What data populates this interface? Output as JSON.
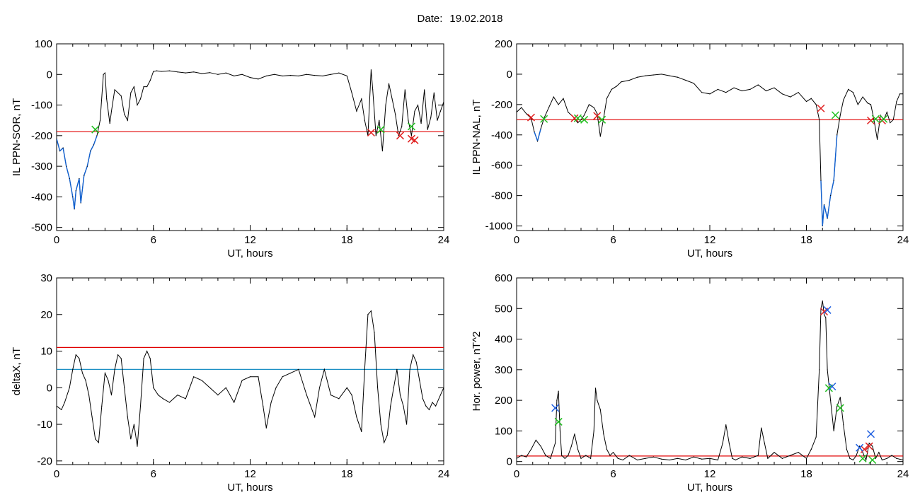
{
  "header": {
    "date_label": "Date:",
    "date_value": "19.02.2018"
  },
  "colors": {
    "trace": "#000000",
    "threshold": "#e00000",
    "threshold2": "#1b8fc4",
    "below_threshold": "#1060d0",
    "start_marker": "#e02020",
    "end_marker": "#20c020",
    "peak_marker": "#2060e0"
  },
  "chart_data": [
    {
      "type": "line",
      "xlabel": "UT, hours",
      "ylabel": "IL PPN-SOR, nT",
      "xlim": [
        0,
        24
      ],
      "ylim": [
        -510,
        100
      ],
      "xticks": [
        0,
        6,
        12,
        18,
        24
      ],
      "yticks": [
        100,
        0,
        -100,
        -200,
        -300,
        -400,
        -500
      ],
      "threshold": -187,
      "series": [
        {
          "x": [
            0,
            0.2,
            0.4,
            0.6,
            0.8,
            1.0,
            1.1,
            1.2,
            1.4,
            1.5,
            1.7,
            1.9,
            2.1,
            2.3,
            2.5,
            2.7,
            2.9,
            3.0,
            3.1,
            3.3,
            3.4,
            3.6,
            3.8,
            4.0,
            4.2,
            4.4,
            4.6,
            4.8,
            5.0,
            5.2,
            5.4,
            5.6,
            5.8,
            6.0,
            6.2,
            6.5,
            7,
            7.5,
            8,
            8.5,
            9,
            9.5,
            10,
            10.5,
            11,
            11.5,
            12,
            12.5,
            13,
            13.5,
            14,
            14.5,
            15,
            15.5,
            16,
            16.5,
            17,
            17.5,
            18,
            18.3,
            18.6,
            18.9,
            19.1,
            19.3,
            19.5,
            19.6,
            19.8,
            20.0,
            20.2,
            20.4,
            20.6,
            20.8,
            21.0,
            21.2,
            21.4,
            21.6,
            21.8,
            22.0,
            22.2,
            22.4,
            22.6,
            22.8,
            23.0,
            23.2,
            23.4,
            23.6,
            23.8,
            24
          ],
          "y": [
            -210,
            -250,
            -240,
            -300,
            -340,
            -400,
            -440,
            -380,
            -340,
            -420,
            -330,
            -300,
            -250,
            -230,
            -200,
            -150,
            0,
            5,
            -80,
            -160,
            -120,
            -50,
            -60,
            -70,
            -130,
            -150,
            -60,
            -40,
            -100,
            -80,
            -40,
            -40,
            -20,
            10,
            12,
            10,
            12,
            8,
            5,
            8,
            3,
            6,
            0,
            5,
            -5,
            0,
            -10,
            -15,
            -5,
            0,
            -5,
            -3,
            -5,
            0,
            -3,
            -5,
            0,
            5,
            -5,
            -60,
            -120,
            -80,
            -150,
            -200,
            15,
            -50,
            -200,
            -150,
            -250,
            -100,
            -30,
            -80,
            -130,
            -200,
            -170,
            -50,
            -150,
            -200,
            -120,
            -100,
            -160,
            -50,
            -180,
            -140,
            -60,
            -150,
            -120,
            -90
          ]
        }
      ],
      "markers_start": [
        {
          "x": 19.5,
          "y": -190
        },
        {
          "x": 21.3,
          "y": -200
        },
        {
          "x": 22.0,
          "y": -210
        },
        {
          "x": 22.2,
          "y": -215
        }
      ],
      "markers_end": [
        {
          "x": 2.4,
          "y": -180
        },
        {
          "x": 20.1,
          "y": -180
        },
        {
          "x": 22.0,
          "y": -170
        }
      ]
    },
    {
      "type": "line",
      "xlabel": "UT, hours",
      "ylabel": "IL PPN-NAL, nT",
      "xlim": [
        0,
        24
      ],
      "ylim": [
        -1030,
        200
      ],
      "xticks": [
        0,
        6,
        12,
        18,
        24
      ],
      "yticks": [
        200,
        0,
        -200,
        -400,
        -600,
        -800,
        -1000
      ],
      "threshold": -300,
      "series": [
        {
          "x": [
            0,
            0.3,
            0.6,
            0.9,
            1.1,
            1.3,
            1.5,
            1.7,
            2.0,
            2.3,
            2.6,
            2.9,
            3.2,
            3.5,
            3.8,
            4.0,
            4.2,
            4.5,
            4.8,
            5.0,
            5.2,
            5.4,
            5.6,
            5.9,
            6.2,
            6.5,
            7,
            7.5,
            8,
            8.5,
            9,
            9.5,
            10,
            10.5,
            11,
            11.5,
            12,
            12.5,
            13,
            13.5,
            14,
            14.5,
            15,
            15.5,
            16,
            16.5,
            17,
            17.5,
            18,
            18.3,
            18.6,
            18.8,
            18.9,
            19.0,
            19.1,
            19.3,
            19.5,
            19.7,
            19.9,
            20.1,
            20.3,
            20.6,
            20.9,
            21.2,
            21.5,
            21.8,
            22.0,
            22.2,
            22.4,
            22.6,
            22.8,
            23.0,
            23.2,
            23.4,
            23.6,
            23.8,
            24
          ],
          "y": [
            -250,
            -220,
            -260,
            -290,
            -380,
            -440,
            -360,
            -290,
            -220,
            -150,
            -200,
            -160,
            -250,
            -280,
            -320,
            -300,
            -270,
            -200,
            -220,
            -260,
            -410,
            -290,
            -160,
            -100,
            -80,
            -50,
            -40,
            -20,
            -10,
            -5,
            0,
            -10,
            -20,
            -40,
            -60,
            -120,
            -130,
            -100,
            -120,
            -90,
            -110,
            -100,
            -70,
            -110,
            -90,
            -130,
            -150,
            -120,
            -180,
            -160,
            -200,
            -300,
            -700,
            -1000,
            -860,
            -950,
            -800,
            -700,
            -400,
            -270,
            -170,
            -100,
            -120,
            -200,
            -150,
            -190,
            -200,
            -300,
            -430,
            -270,
            -300,
            -250,
            -320,
            -300,
            -180,
            -130,
            -130
          ]
        }
      ],
      "markers_start": [
        {
          "x": 0.9,
          "y": -285
        },
        {
          "x": 3.6,
          "y": -290
        },
        {
          "x": 5.0,
          "y": -275
        },
        {
          "x": 18.9,
          "y": -225
        },
        {
          "x": 22.0,
          "y": -305
        },
        {
          "x": 22.7,
          "y": -305
        }
      ],
      "markers_end": [
        {
          "x": 1.7,
          "y": -295
        },
        {
          "x": 3.8,
          "y": -290
        },
        {
          "x": 4.2,
          "y": -300
        },
        {
          "x": 5.3,
          "y": -300
        },
        {
          "x": 19.8,
          "y": -270
        },
        {
          "x": 22.3,
          "y": -295
        },
        {
          "x": 22.8,
          "y": -295
        }
      ]
    },
    {
      "type": "line",
      "xlabel": "UT, hours",
      "ylabel": "deltaX, nT",
      "xlim": [
        0,
        24
      ],
      "ylim": [
        -21,
        30
      ],
      "xticks": [
        0,
        6,
        12,
        18,
        24
      ],
      "yticks": [
        30,
        20,
        10,
        0,
        -10,
        -20
      ],
      "threshold": 11,
      "threshold2": 5,
      "series": [
        {
          "x": [
            0,
            0.3,
            0.5,
            0.8,
            1.0,
            1.2,
            1.4,
            1.6,
            1.8,
            2.0,
            2.2,
            2.4,
            2.6,
            2.8,
            3.0,
            3.2,
            3.4,
            3.6,
            3.8,
            4.0,
            4.2,
            4.4,
            4.6,
            4.8,
            5.0,
            5.2,
            5.4,
            5.6,
            5.8,
            6.0,
            6.3,
            6.6,
            7,
            7.5,
            8,
            8.5,
            9,
            9.5,
            10,
            10.5,
            11,
            11.5,
            12,
            12.5,
            12.8,
            13.0,
            13.3,
            13.6,
            14,
            14.5,
            15,
            15.5,
            16,
            16.3,
            16.6,
            17,
            17.5,
            18,
            18.3,
            18.6,
            18.9,
            19.1,
            19.3,
            19.5,
            19.7,
            19.9,
            20.1,
            20.3,
            20.5,
            20.7,
            20.9,
            21.1,
            21.3,
            21.5,
            21.7,
            21.9,
            22.1,
            22.3,
            22.5,
            22.7,
            22.9,
            23.1,
            23.3,
            23.5,
            23.8,
            24
          ],
          "y": [
            -5,
            -6,
            -4,
            0,
            5,
            9,
            8,
            4,
            2,
            -2,
            -8,
            -14,
            -15,
            -5,
            4,
            2,
            -2,
            5,
            9,
            8,
            0,
            -8,
            -14,
            -10,
            -16,
            -5,
            8,
            10,
            8,
            0,
            -2,
            -3,
            -4,
            -2,
            -3,
            3,
            2,
            0,
            -2,
            0,
            -4,
            2,
            3,
            3,
            -5,
            -11,
            -4,
            0,
            3,
            4,
            5,
            -2,
            -8,
            0,
            5,
            -2,
            -3,
            0,
            -2,
            -8,
            -12,
            5,
            20,
            21,
            15,
            0,
            -10,
            -15,
            -13,
            -5,
            0,
            5,
            -2,
            -5,
            -10,
            5,
            9,
            7,
            2,
            -3,
            -5,
            -6,
            -4,
            -5,
            -2,
            0
          ]
        }
      ]
    },
    {
      "type": "line",
      "xlabel": "UT, hours",
      "ylabel": "Hor. power, nT^2",
      "xlim": [
        0,
        24
      ],
      "ylim": [
        -10,
        600
      ],
      "xticks": [
        0,
        6,
        12,
        18,
        24
      ],
      "yticks": [
        600,
        500,
        400,
        300,
        200,
        100,
        0
      ],
      "threshold": 18,
      "series": [
        {
          "x": [
            0,
            0.3,
            0.6,
            0.9,
            1.2,
            1.5,
            1.8,
            2.1,
            2.4,
            2.5,
            2.6,
            2.7,
            2.8,
            3.0,
            3.2,
            3.4,
            3.6,
            3.8,
            4.0,
            4.3,
            4.6,
            4.8,
            4.9,
            5.0,
            5.2,
            5.4,
            5.6,
            5.8,
            6.0,
            6.3,
            6.6,
            7,
            7.5,
            8,
            8.5,
            9,
            9.5,
            10,
            10.5,
            11,
            11.5,
            12,
            12.5,
            12.8,
            13.0,
            13.2,
            13.4,
            13.6,
            14,
            14.5,
            15,
            15.2,
            15.4,
            15.6,
            16,
            16.5,
            17,
            17.5,
            18,
            18.3,
            18.6,
            18.8,
            18.9,
            19.0,
            19.1,
            19.2,
            19.3,
            19.5,
            19.7,
            19.9,
            20.1,
            20.3,
            20.5,
            20.7,
            20.9,
            21.1,
            21.3,
            21.5,
            21.7,
            21.9,
            22.1,
            22.3,
            22.5,
            22.7,
            23.0,
            23.3,
            23.6,
            24
          ],
          "y": [
            10,
            20,
            15,
            40,
            70,
            50,
            20,
            10,
            60,
            200,
            230,
            100,
            20,
            10,
            20,
            50,
            90,
            40,
            10,
            20,
            10,
            100,
            240,
            200,
            170,
            90,
            40,
            20,
            30,
            10,
            5,
            20,
            5,
            10,
            15,
            8,
            5,
            10,
            5,
            15,
            8,
            10,
            5,
            60,
            120,
            60,
            10,
            5,
            15,
            10,
            20,
            110,
            60,
            10,
            30,
            10,
            20,
            30,
            10,
            40,
            80,
            300,
            500,
            525,
            480,
            470,
            300,
            200,
            100,
            180,
            210,
            120,
            40,
            10,
            5,
            20,
            50,
            30,
            5,
            60,
            50,
            10,
            30,
            5,
            10,
            20,
            10,
            5
          ]
        }
      ],
      "markers_start": [
        {
          "x": 19.1,
          "y": 490
        },
        {
          "x": 21.6,
          "y": 40
        },
        {
          "x": 21.9,
          "y": 50
        }
      ],
      "markers_end": [
        {
          "x": 2.6,
          "y": 130
        },
        {
          "x": 19.4,
          "y": 240
        },
        {
          "x": 20.1,
          "y": 175
        },
        {
          "x": 21.5,
          "y": 10
        },
        {
          "x": 22.1,
          "y": 5
        }
      ],
      "markers_peak": [
        {
          "x": 2.4,
          "y": 175
        },
        {
          "x": 19.3,
          "y": 495
        },
        {
          "x": 19.6,
          "y": 245
        },
        {
          "x": 21.3,
          "y": 45
        },
        {
          "x": 22.0,
          "y": 90
        }
      ]
    }
  ]
}
